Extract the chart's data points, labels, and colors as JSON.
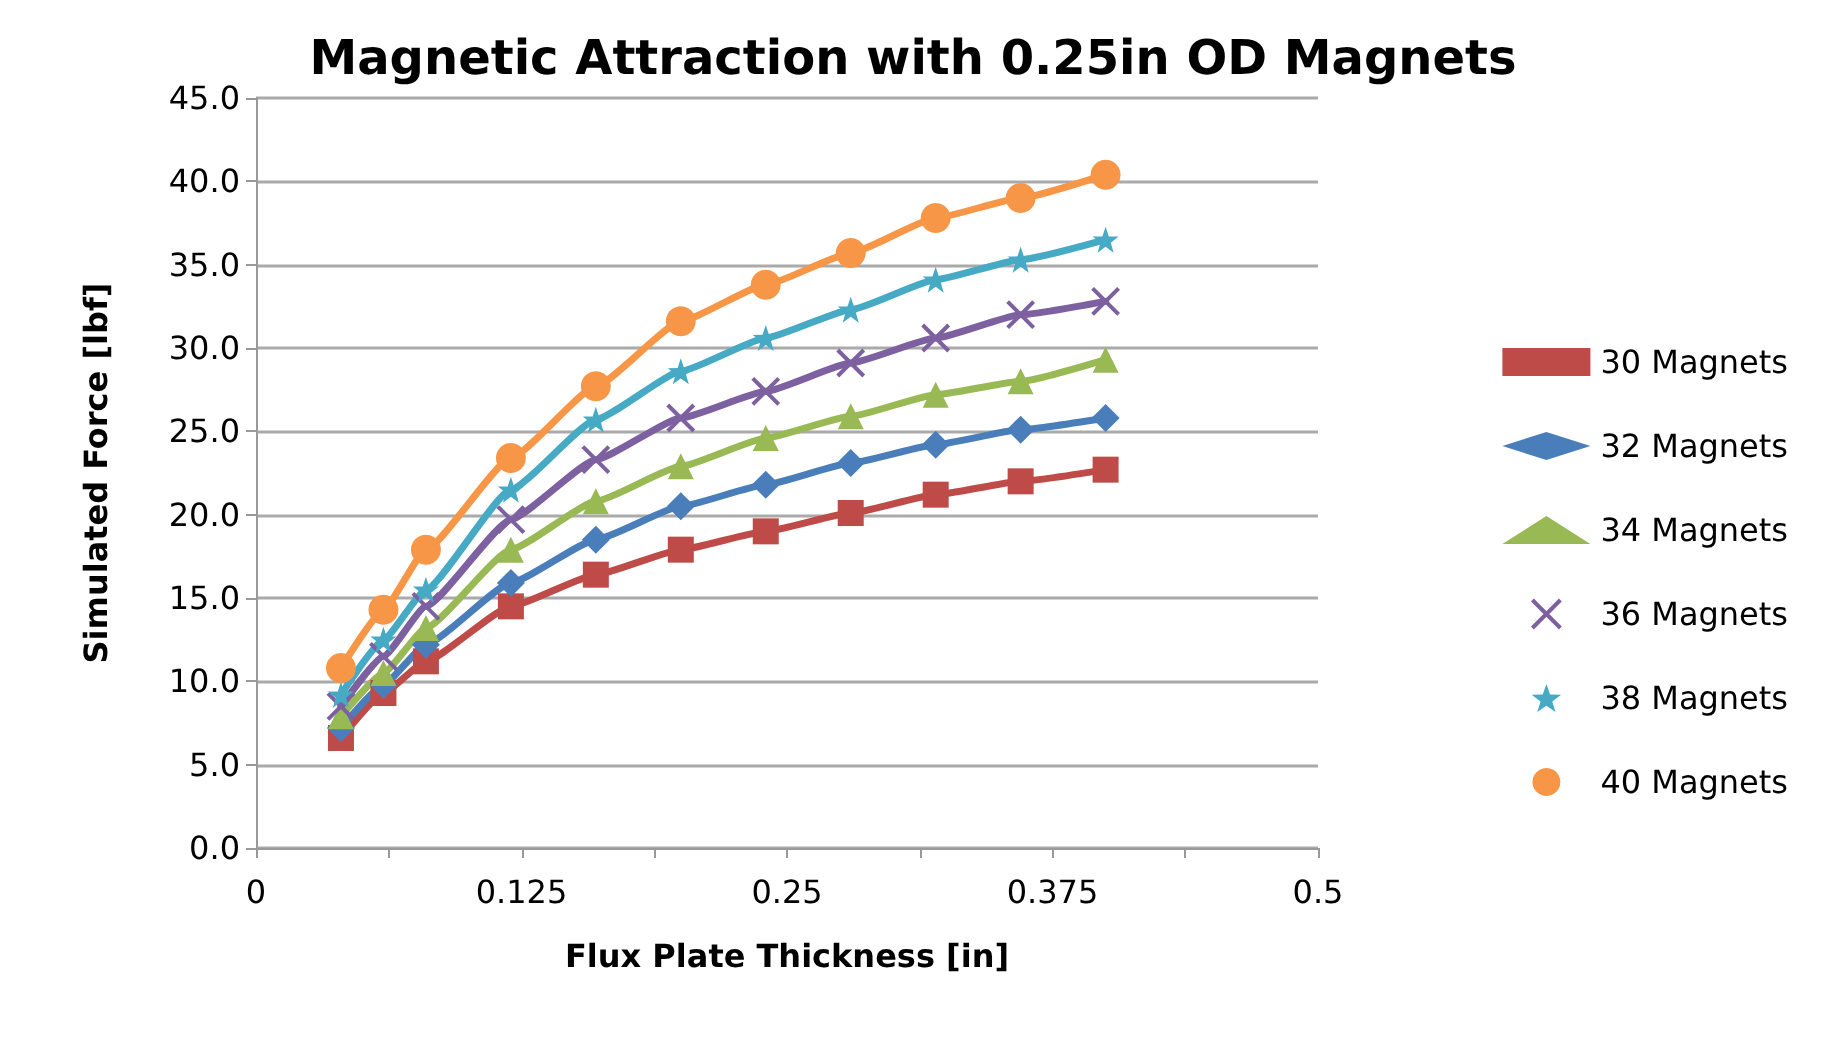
{
  "chart_data": {
    "type": "line",
    "title": "Magnetic Attraction with 0.25in OD Magnets",
    "xlabel": "Flux Plate Thickness [in]",
    "ylabel": "Simulated Force [lbf]",
    "x": [
      0.04,
      0.06,
      0.08,
      0.12,
      0.16,
      0.2,
      0.24,
      0.28,
      0.32,
      0.36,
      0.4
    ],
    "series": [
      {
        "name": "30 Magnets",
        "color": "#be4b48",
        "marker": "square",
        "values": [
          6.6,
          9.3,
          11.2,
          14.5,
          16.4,
          17.9,
          19.0,
          20.1,
          21.2,
          22.0,
          22.7
        ]
      },
      {
        "name": "32 Magnets",
        "color": "#4a7ebb",
        "marker": "diamond",
        "values": [
          7.2,
          9.8,
          12.2,
          15.9,
          18.5,
          20.5,
          21.8,
          23.1,
          24.2,
          25.1,
          25.8
        ]
      },
      {
        "name": "34 Magnets",
        "color": "#98b954",
        "marker": "triangle",
        "values": [
          7.9,
          10.5,
          13.2,
          17.9,
          20.8,
          22.9,
          24.6,
          25.9,
          27.2,
          28.0,
          29.3
        ]
      },
      {
        "name": "36 Magnets",
        "color": "#7d60a0",
        "marker": "cross",
        "values": [
          8.5,
          11.5,
          14.5,
          19.7,
          23.3,
          25.8,
          27.4,
          29.1,
          30.6,
          32.0,
          32.8
        ]
      },
      {
        "name": "38 Magnets",
        "color": "#46aac5",
        "marker": "star",
        "values": [
          9.2,
          12.5,
          15.5,
          21.5,
          25.7,
          28.6,
          30.6,
          32.3,
          34.1,
          35.3,
          36.5
        ]
      },
      {
        "name": "40 Magnets",
        "color": "#f79646",
        "marker": "circle",
        "values": [
          10.8,
          14.3,
          17.9,
          23.4,
          27.7,
          31.6,
          33.8,
          35.7,
          37.8,
          39.0,
          40.4
        ]
      }
    ],
    "xlim": [
      0,
      0.5
    ],
    "xticks": [
      0,
      {
        "value": 0.0625,
        "label": null
      },
      0.125,
      {
        "value": 0.1875,
        "label": null
      },
      0.25,
      {
        "value": 0.3125,
        "label": null
      },
      0.375,
      {
        "value": 0.4375,
        "label": null
      },
      0.5
    ],
    "ylim": [
      0,
      45
    ],
    "yticks": [
      {
        "value": 0,
        "label": "0.0"
      },
      {
        "value": 5,
        "label": "5.0"
      },
      {
        "value": 10,
        "label": "10.0"
      },
      {
        "value": 15,
        "label": "15.0"
      },
      {
        "value": 20,
        "label": "20.0"
      },
      {
        "value": 25,
        "label": "25.0"
      },
      {
        "value": 30,
        "label": "30.0"
      },
      {
        "value": 35,
        "label": "35.0"
      },
      {
        "value": 40,
        "label": "40.0"
      },
      {
        "value": 45,
        "label": "45.0"
      }
    ],
    "grid": "y",
    "legend": "right",
    "line_style": "solid"
  }
}
